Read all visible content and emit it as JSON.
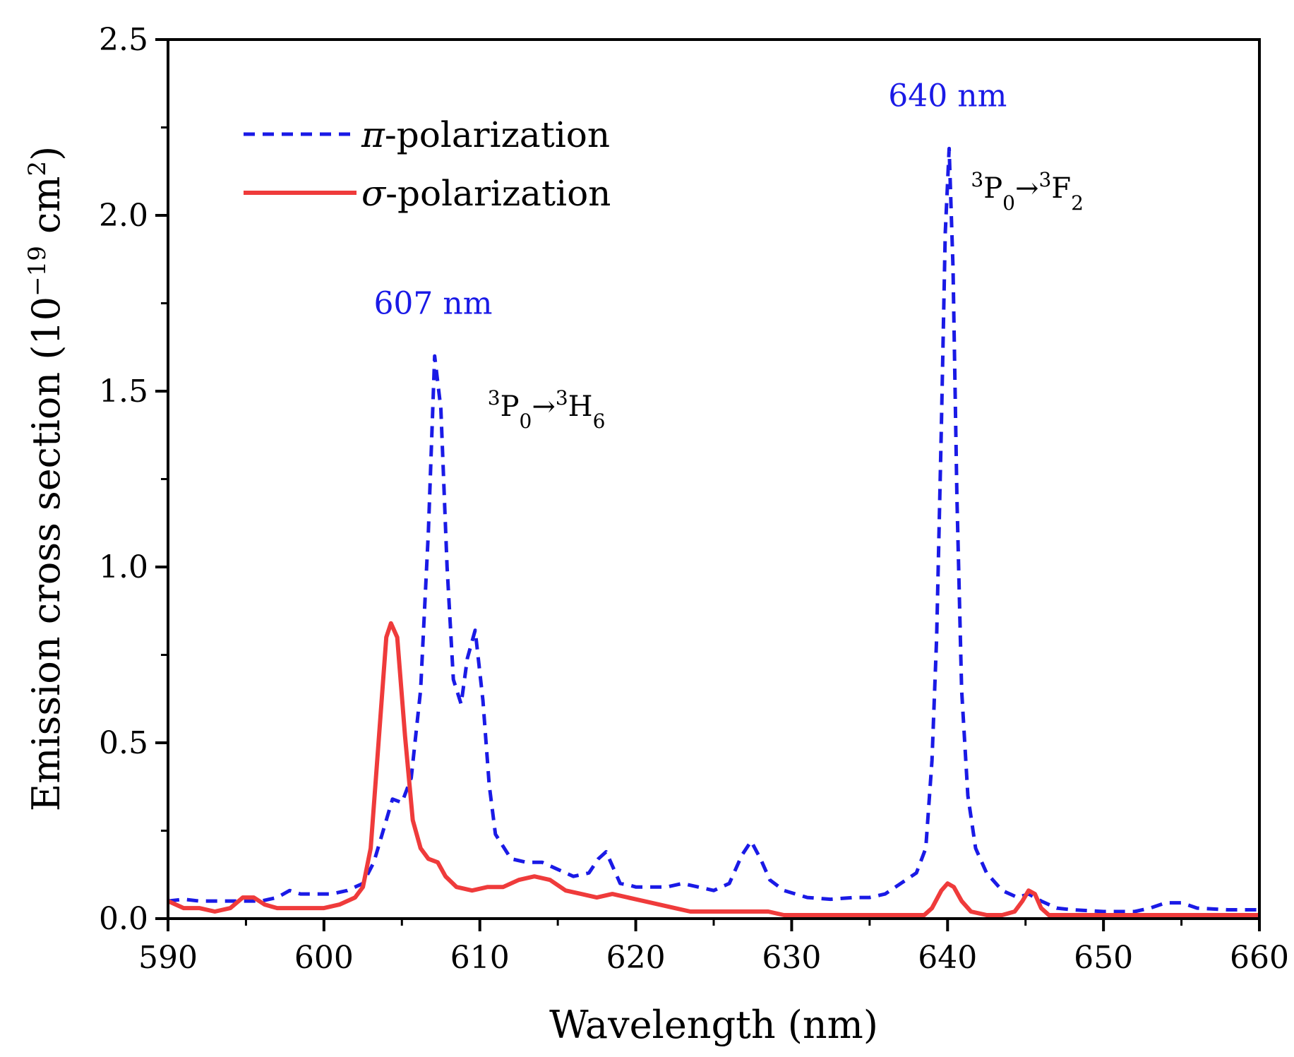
{
  "chart_data": {
    "type": "line",
    "xlabel": "Wavelength (nm)",
    "ylabel": {
      "base": "Emission cross section (10",
      "exp": "−19",
      "unit": " cm",
      "unit_exp": "2",
      "close": ")"
    },
    "xlim": [
      590,
      660
    ],
    "ylim": [
      0,
      2.5
    ],
    "xticks": [
      590,
      600,
      610,
      620,
      630,
      640,
      650,
      660
    ],
    "xtick_labels": [
      "590",
      "600",
      "610",
      "620",
      "630",
      "640",
      "650",
      "660"
    ],
    "yticks": [
      0,
      0.5,
      1.0,
      1.5,
      2.0,
      2.5
    ],
    "ytick_labels": [
      "0.0",
      "0.5",
      "1.0",
      "1.5",
      "2.0",
      "2.5"
    ],
    "legend_position": "top-left",
    "series": [
      {
        "name": "π-polarization",
        "legend_symbol": "π",
        "legend_suffix": "-polarization",
        "color": "#1a1ae6",
        "style": "dashed",
        "x": [
          590,
          591,
          592,
          593,
          594,
          595,
          596,
          597,
          597.8,
          598.5,
          599.5,
          600.5,
          601.5,
          602.5,
          603.2,
          603.8,
          604.4,
          605,
          605.6,
          606.2,
          606.7,
          607.1,
          607.5,
          607.9,
          608.3,
          608.8,
          609.2,
          609.7,
          610.2,
          610.6,
          611,
          612,
          613,
          614,
          615,
          616,
          617,
          617.6,
          618.1,
          618.6,
          619,
          619.6,
          620,
          621,
          622,
          623,
          624,
          625,
          626,
          626.8,
          627.4,
          628,
          628.6,
          629.5,
          631,
          632.5,
          634,
          635,
          636,
          637,
          638,
          638.6,
          639,
          639.3,
          639.6,
          639.85,
          640.1,
          640.35,
          640.6,
          640.9,
          641.3,
          641.8,
          642.5,
          643.5,
          644.5,
          645.2,
          646,
          647,
          648,
          650,
          652,
          653,
          654,
          655,
          656,
          658,
          660
        ],
        "values": [
          0.05,
          0.055,
          0.05,
          0.05,
          0.05,
          0.05,
          0.05,
          0.06,
          0.08,
          0.07,
          0.07,
          0.07,
          0.08,
          0.1,
          0.16,
          0.25,
          0.34,
          0.33,
          0.4,
          0.65,
          1.1,
          1.6,
          1.45,
          1.0,
          0.68,
          0.61,
          0.74,
          0.82,
          0.62,
          0.38,
          0.24,
          0.17,
          0.16,
          0.16,
          0.14,
          0.12,
          0.13,
          0.17,
          0.19,
          0.14,
          0.1,
          0.095,
          0.09,
          0.09,
          0.09,
          0.1,
          0.09,
          0.08,
          0.1,
          0.18,
          0.22,
          0.17,
          0.11,
          0.08,
          0.06,
          0.055,
          0.06,
          0.06,
          0.07,
          0.1,
          0.13,
          0.2,
          0.45,
          0.8,
          1.4,
          1.95,
          2.19,
          1.85,
          1.2,
          0.65,
          0.35,
          0.2,
          0.13,
          0.08,
          0.06,
          0.07,
          0.05,
          0.03,
          0.025,
          0.02,
          0.02,
          0.03,
          0.045,
          0.045,
          0.03,
          0.025,
          0.025
        ]
      },
      {
        "name": "σ-polarization",
        "legend_symbol": "σ",
        "legend_suffix": "-polarization",
        "color": "#ef3b3b",
        "style": "solid",
        "x": [
          590,
          590.5,
          591,
          592,
          593,
          594,
          594.8,
          595.5,
          596.2,
          597,
          598,
          599,
          600,
          601,
          602,
          602.5,
          603,
          603.5,
          604,
          604.3,
          604.7,
          605.2,
          605.7,
          606.2,
          606.7,
          607.3,
          607.8,
          608.5,
          609.5,
          610.5,
          611.5,
          612.5,
          613.5,
          614.5,
          615.5,
          616.5,
          617.5,
          618.5,
          619.5,
          620.5,
          621.5,
          622.5,
          623.5,
          625,
          627,
          628.5,
          629.5,
          631,
          633,
          635,
          637,
          638.5,
          639,
          639.6,
          640,
          640.4,
          640.9,
          641.5,
          642.5,
          643.5,
          644.3,
          644.8,
          645.2,
          645.6,
          646,
          646.5,
          647.5,
          650,
          653,
          655,
          657,
          660
        ],
        "values": [
          0.05,
          0.04,
          0.03,
          0.03,
          0.02,
          0.03,
          0.06,
          0.06,
          0.04,
          0.03,
          0.03,
          0.03,
          0.03,
          0.04,
          0.06,
          0.09,
          0.2,
          0.5,
          0.8,
          0.84,
          0.8,
          0.52,
          0.28,
          0.2,
          0.17,
          0.16,
          0.12,
          0.09,
          0.08,
          0.09,
          0.09,
          0.11,
          0.12,
          0.11,
          0.08,
          0.07,
          0.06,
          0.07,
          0.06,
          0.05,
          0.04,
          0.03,
          0.02,
          0.02,
          0.02,
          0.02,
          0.01,
          0.01,
          0.01,
          0.01,
          0.01,
          0.01,
          0.03,
          0.08,
          0.1,
          0.09,
          0.05,
          0.02,
          0.01,
          0.01,
          0.02,
          0.05,
          0.08,
          0.07,
          0.03,
          0.01,
          0.01,
          0.01,
          0.01,
          0.01,
          0.01,
          0.01
        ]
      }
    ],
    "annotations": [
      {
        "text": "607 nm",
        "x": 607,
        "y": 1.72,
        "color": "#1a1ae6"
      },
      {
        "text": "640 nm",
        "x": 640,
        "y": 2.31,
        "color": "#1a1ae6"
      }
    ],
    "transitions": [
      {
        "x": 610.5,
        "y": 1.43,
        "a_sup": "3",
        "a": "P",
        "a_sub": "0",
        "arrow": "→",
        "b_sup": "3",
        "b": "H",
        "b_sub": "6"
      },
      {
        "x": 641.5,
        "y": 2.05,
        "a_sup": "3",
        "a": "P",
        "a_sub": "0",
        "arrow": "→",
        "b_sup": "3",
        "b": "F",
        "b_sub": "2"
      }
    ]
  }
}
